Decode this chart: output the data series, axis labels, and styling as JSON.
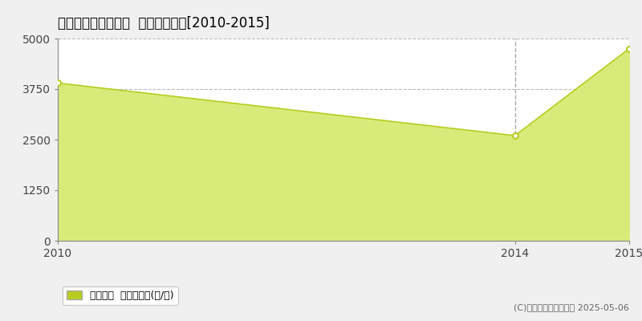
{
  "title": "双葉郡楢葉町下繁岡  林地価格推移[2010-2015]",
  "x_values": [
    2010,
    2014,
    2015
  ],
  "y_values": [
    3900,
    2600,
    4750
  ],
  "x_min": 2010,
  "x_max": 2015,
  "y_min": 0,
  "y_max": 5000,
  "y_ticks": [
    0,
    1250,
    2500,
    3750,
    5000
  ],
  "x_ticks": [
    2010,
    2014,
    2015
  ],
  "line_color": "#b8cc20",
  "fill_color": "#d8eb7a",
  "fill_alpha": 1.0,
  "marker_color": "#ffffff",
  "marker_edge_color": "#b8cc20",
  "vline_x": 2014,
  "vline_color": "#aaaaaa",
  "grid_color": "#bbbbbb",
  "plot_bg_color": "#ffffff",
  "outer_bg_color": "#f0f0f0",
  "legend_label": "林地価格  平均坪単価(円/坪)",
  "copyright_text": "(C)土地価格ドットコム 2025-05-06",
  "title_fontsize": 12,
  "tick_fontsize": 10,
  "legend_fontsize": 9
}
